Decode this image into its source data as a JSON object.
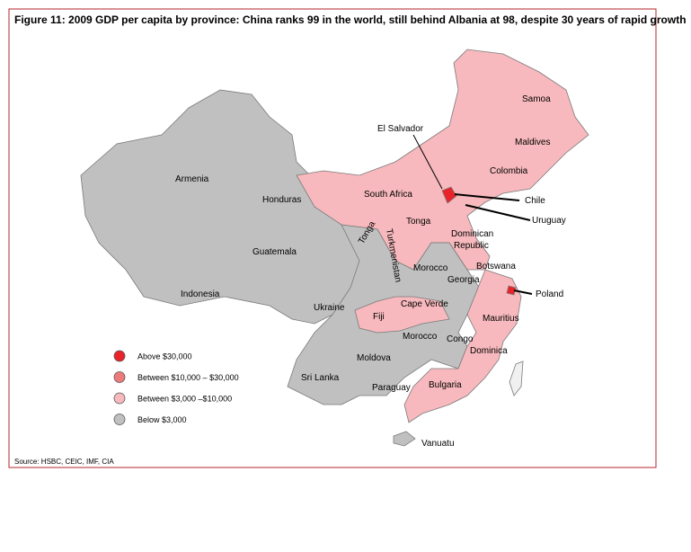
{
  "title": "Figure 11: 2009 GDP per capita by province: China ranks 99 in the world, still behind Albania at 98, despite 30 years of rapid growth",
  "map": {
    "regions": [
      "Samoa",
      "Maldives",
      "Colombia",
      "El Salvador",
      "South Africa",
      "Chile",
      "Uruguay",
      "Honduras",
      "Armenia",
      "Tonga",
      "Tonga",
      "Turkmenistan",
      "Dominican",
      "Republic",
      "Guatemala",
      "Botswana",
      "Morocco",
      "Georgia",
      "Poland",
      "Indonesia",
      "Ukraine",
      "Cape Verde",
      "Fiji",
      "Mauritius",
      "Morocco",
      "Congo",
      "Dominica",
      "Moldova",
      "Sri Lanka",
      "Paraguay",
      "Bulgaria",
      "Vanuatu"
    ]
  },
  "legend": [
    {
      "label": "Above $30,000",
      "color": "#e8242a"
    },
    {
      "label": "Between $10,000 – $30,000",
      "color": "#ee7b7b"
    },
    {
      "label": "Between $3,000 –$10,000",
      "color": "#f7b9bd"
    },
    {
      "label": "Below $3,000",
      "color": "#c0c0c0"
    }
  ],
  "source": "Source: HSBC, CEIC, IMF, CIA"
}
